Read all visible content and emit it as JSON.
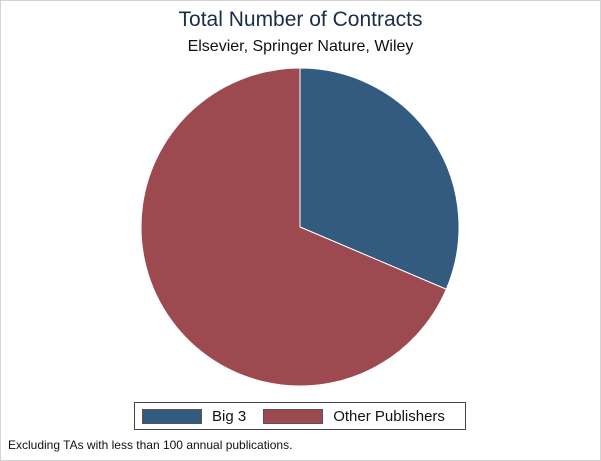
{
  "chart_data": {
    "type": "pie",
    "title": "Total Number of Contracts",
    "subtitle": "Elsevier, Springer Nature, Wiley",
    "categories": [
      "Big 3",
      "Other Publishers"
    ],
    "values": [
      31.4,
      68.6
    ],
    "colors": [
      "#335b80",
      "#9c4950"
    ],
    "legend_position": "bottom",
    "note": "Excluding TAs with less than 100 annual publications."
  }
}
